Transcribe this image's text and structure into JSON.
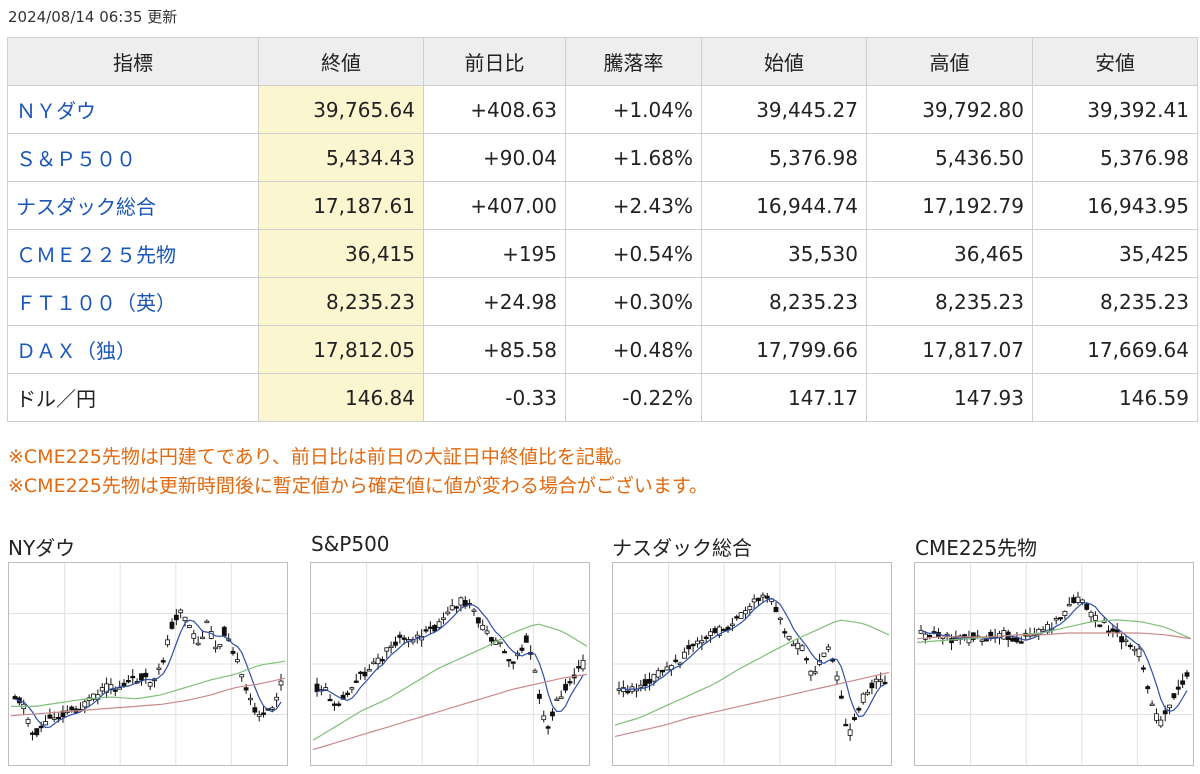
{
  "updated": "2024/08/14 06:35 更新",
  "table": {
    "headers": [
      "指標",
      "終値",
      "前日比",
      "騰落率",
      "始値",
      "高値",
      "安値"
    ],
    "rows": [
      {
        "name": "ＮＹダウ",
        "close": "39,765.64",
        "change": "+408.63",
        "rate": "+1.04%",
        "open": "39,445.27",
        "high": "39,792.80",
        "low": "39,392.41",
        "link": true,
        "dir": "up"
      },
      {
        "name": "Ｓ＆Ｐ５００",
        "close": "5,434.43",
        "change": "+90.04",
        "rate": "+1.68%",
        "open": "5,376.98",
        "high": "5,436.50",
        "low": "5,376.98",
        "link": true,
        "dir": "up"
      },
      {
        "name": "ナスダック総合",
        "close": "17,187.61",
        "change": "+407.00",
        "rate": "+2.43%",
        "open": "16,944.74",
        "high": "17,192.79",
        "low": "16,943.95",
        "link": true,
        "dir": "up"
      },
      {
        "name": "ＣＭＥ２２５先物",
        "close": "36,415",
        "change": "+195",
        "rate": "+0.54%",
        "open": "35,530",
        "high": "36,465",
        "low": "35,425",
        "link": true,
        "dir": "up"
      },
      {
        "name": "ＦＴ１００（英）",
        "close": "8,235.23",
        "change": "+24.98",
        "rate": "+0.30%",
        "open": "8,235.23",
        "high": "8,235.23",
        "low": "8,235.23",
        "link": true,
        "dir": "up"
      },
      {
        "name": "ＤＡＸ（独）",
        "close": "17,812.05",
        "change": "+85.58",
        "rate": "+0.48%",
        "open": "17,799.66",
        "high": "17,817.07",
        "low": "17,669.64",
        "link": true,
        "dir": "up"
      },
      {
        "name": "ドル／円",
        "close": "146.84",
        "change": "-0.33",
        "rate": "-0.22%",
        "open": "147.17",
        "high": "147.93",
        "low": "146.59",
        "link": false,
        "dir": "down"
      }
    ]
  },
  "notes": [
    "※CME225先物は円建てであり、前日比は前日の大証日中終値比を記載。",
    "※CME225先物は更新時間後に暫定値から確定値に値が変わる場合がございます。"
  ],
  "charts": [
    {
      "title": "NYダウ",
      "seed": 11,
      "path": [
        0.66,
        0.72,
        0.88,
        0.82,
        0.78,
        0.76,
        0.74,
        0.73,
        0.7,
        0.66,
        0.62,
        0.63,
        0.6,
        0.58,
        0.55,
        0.62,
        0.5,
        0.3,
        0.2,
        0.3,
        0.4,
        0.28,
        0.42,
        0.3,
        0.45,
        0.62,
        0.72,
        0.78,
        0.74,
        0.6
      ],
      "ma_short_shift": 2,
      "ma_mid": [
        0.72,
        0.72,
        0.7,
        0.68,
        0.67,
        0.68,
        0.66,
        0.62,
        0.58,
        0.55,
        0.5,
        0.48
      ],
      "ma_long": [
        0.77,
        0.76,
        0.75,
        0.74,
        0.73,
        0.72,
        0.71,
        0.69,
        0.66,
        0.62,
        0.6,
        0.57
      ]
    },
    {
      "title": "S&P500",
      "seed": 23,
      "path": [
        0.62,
        0.64,
        0.7,
        0.66,
        0.6,
        0.55,
        0.5,
        0.46,
        0.4,
        0.36,
        0.38,
        0.35,
        0.33,
        0.3,
        0.24,
        0.18,
        0.16,
        0.2,
        0.3,
        0.36,
        0.4,
        0.5,
        0.45,
        0.35,
        0.6,
        0.85,
        0.72,
        0.62,
        0.55,
        0.5
      ],
      "ma_short_shift": 2,
      "ma_mid": [
        0.9,
        0.82,
        0.74,
        0.68,
        0.6,
        0.52,
        0.46,
        0.4,
        0.33,
        0.28,
        0.32,
        0.4
      ],
      "ma_long": [
        0.95,
        0.91,
        0.87,
        0.83,
        0.79,
        0.75,
        0.71,
        0.67,
        0.63,
        0.6,
        0.57,
        0.55
      ]
    },
    {
      "title": "ナスダック総合",
      "seed": 37,
      "path": [
        0.62,
        0.63,
        0.61,
        0.6,
        0.56,
        0.52,
        0.5,
        0.45,
        0.4,
        0.37,
        0.34,
        0.32,
        0.3,
        0.26,
        0.2,
        0.15,
        0.12,
        0.2,
        0.3,
        0.38,
        0.42,
        0.55,
        0.48,
        0.4,
        0.62,
        0.88,
        0.74,
        0.64,
        0.6,
        0.58
      ],
      "ma_short_shift": 2,
      "ma_mid": [
        0.82,
        0.78,
        0.72,
        0.66,
        0.6,
        0.52,
        0.45,
        0.38,
        0.32,
        0.26,
        0.28,
        0.34
      ],
      "ma_long": [
        0.88,
        0.85,
        0.82,
        0.78,
        0.75,
        0.72,
        0.69,
        0.66,
        0.63,
        0.6,
        0.57,
        0.54
      ]
    },
    {
      "title": "CME225先物",
      "seed": 53,
      "path": [
        0.34,
        0.34,
        0.35,
        0.36,
        0.35,
        0.36,
        0.35,
        0.35,
        0.34,
        0.34,
        0.35,
        0.36,
        0.35,
        0.33,
        0.3,
        0.26,
        0.2,
        0.14,
        0.18,
        0.26,
        0.28,
        0.32,
        0.36,
        0.4,
        0.45,
        0.7,
        0.82,
        0.72,
        0.62,
        0.56
      ],
      "ma_short_shift": 2,
      "ma_mid": [
        0.38,
        0.37,
        0.36,
        0.35,
        0.34,
        0.33,
        0.3,
        0.27,
        0.26,
        0.27,
        0.3,
        0.36
      ],
      "ma_long": [
        0.36,
        0.35,
        0.35,
        0.35,
        0.34,
        0.34,
        0.33,
        0.33,
        0.33,
        0.33,
        0.34,
        0.36
      ]
    }
  ]
}
